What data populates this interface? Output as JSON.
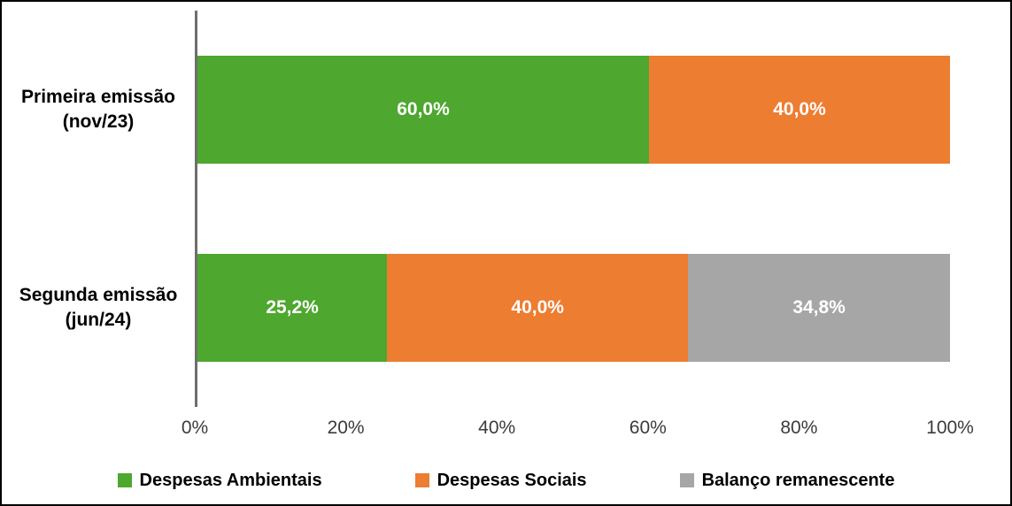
{
  "chart_data": {
    "type": "bar",
    "subtype": "horizontal-stacked-100",
    "title": "",
    "xlabel": "",
    "ylabel": "",
    "xlim": [
      0,
      100
    ],
    "grid": false,
    "legend_position": "bottom",
    "categories": [
      {
        "lines": [
          "Primeira emissão",
          "(nov/23)"
        ]
      },
      {
        "lines": [
          "Segunda emissão",
          "(jun/24)"
        ]
      }
    ],
    "series": [
      {
        "name": "Despesas Ambientais",
        "color": "#4EA72E",
        "values": [
          60.0,
          25.2
        ],
        "display_values": [
          "60,0%",
          "25,2%"
        ]
      },
      {
        "name": "Despesas Sociais",
        "color": "#ED7D31",
        "values": [
          40.0,
          40.0
        ],
        "display_values": [
          "40,0%",
          "40,0%"
        ]
      },
      {
        "name": "Balanço remanescente",
        "color": "#A6A6A6",
        "values": [
          0,
          34.8
        ],
        "display_values": [
          "",
          "34,8%"
        ]
      }
    ],
    "x_ticks": [
      {
        "label": "0%",
        "pos": 0
      },
      {
        "label": "20%",
        "pos": 20
      },
      {
        "label": "40%",
        "pos": 40
      },
      {
        "label": "60%",
        "pos": 60
      },
      {
        "label": "80%",
        "pos": 80
      },
      {
        "label": "100%",
        "pos": 100
      }
    ]
  }
}
